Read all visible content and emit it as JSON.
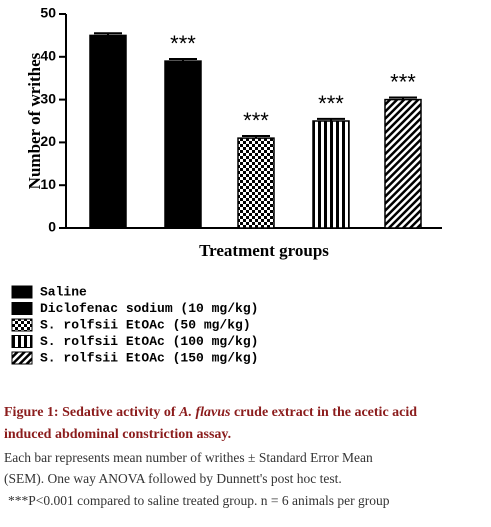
{
  "chart_data": {
    "type": "bar",
    "y_label": "Number of writhes",
    "x_label": "Treatment groups",
    "categories": [
      "Saline",
      "Diclofenac sodium (10 mg/kg)",
      "S. rolfsii EtOAc (50 mg/kg)",
      "S. rolfsii EtOAc (100 mg/kg)",
      "S. rolfsii EtOAc (150 mg/kg)"
    ],
    "values": [
      45,
      39,
      21,
      25,
      30
    ],
    "errors": [
      0.5,
      0.5,
      0.5,
      0.5,
      0.5
    ],
    "annotations": [
      null,
      "***",
      "***",
      "***",
      "***"
    ],
    "patterns": [
      "solid",
      "solid",
      "checker",
      "vstripe",
      "dstripe"
    ],
    "color": "#000000",
    "ylim": [
      0,
      50
    ],
    "yticks": [
      0,
      10,
      20,
      30,
      40,
      50
    ],
    "grid": false
  },
  "caption": {
    "title": [
      "Figure 1: Sedative activity of ",
      "A. flavus",
      " crude extract in the acetic acid",
      "induced abdominal constriction assay."
    ],
    "body": [
      "Each bar represents mean number of writhes ± Standard Error Mean",
      "(SEM).  One way ANOVA followed by Dunnett's post hoc test.",
      "***P<0.001 compared to saline treated group. n = 6 animals per group"
    ]
  }
}
